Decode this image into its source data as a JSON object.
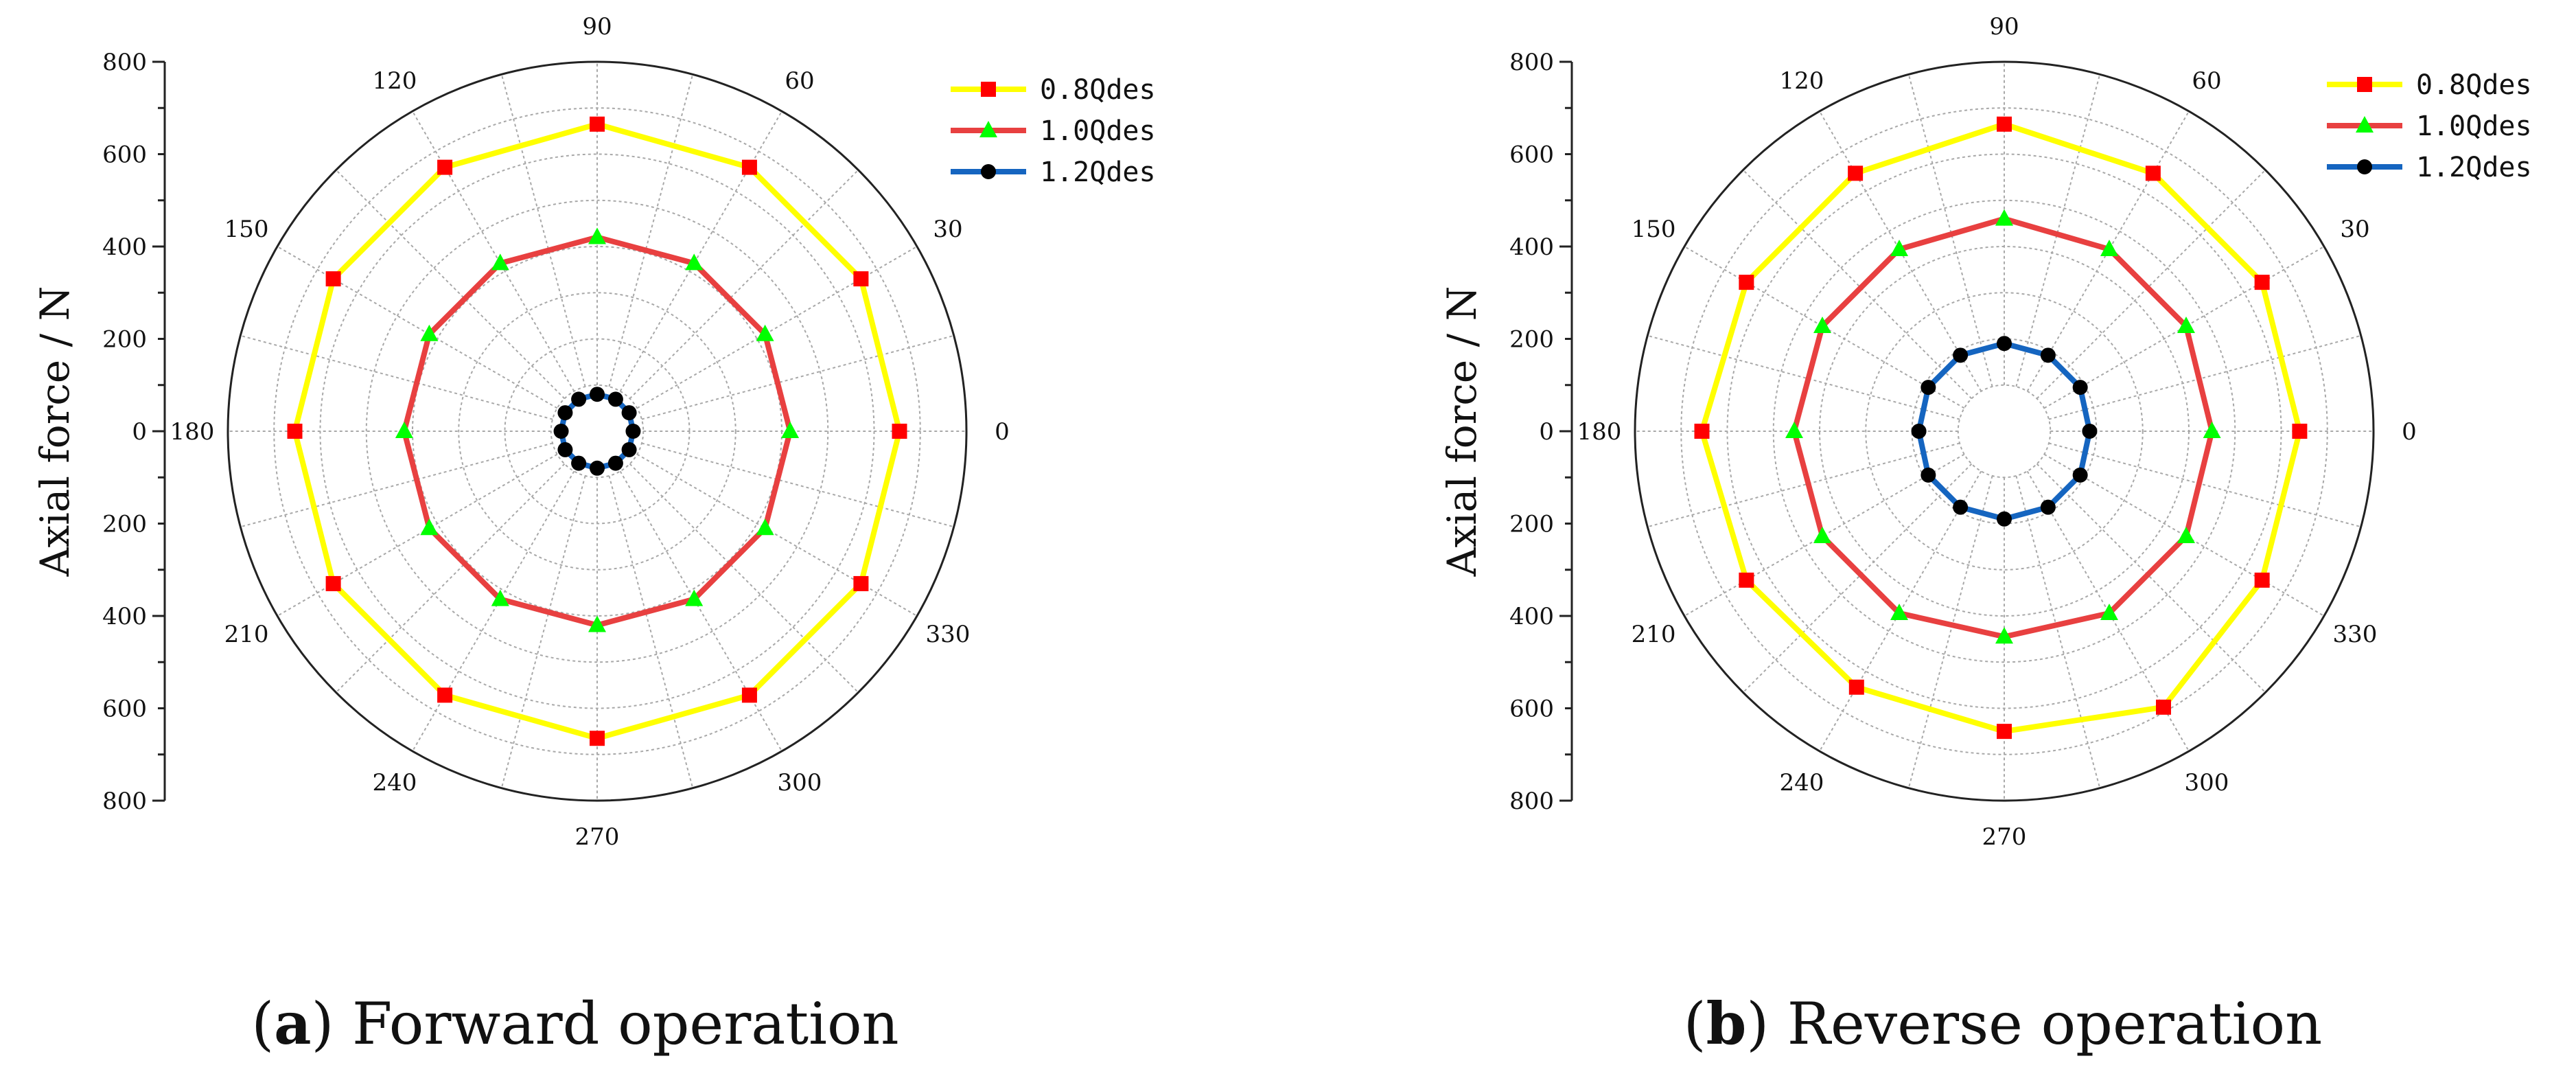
{
  "chart_data": [
    {
      "type": "polar-line",
      "panel_label": "a",
      "caption": "Forward operation",
      "ylabel": "Axial force / N",
      "r_range": [
        0,
        800
      ],
      "r_axis_ticks_upper": [
        "800",
        "600",
        "400",
        "200",
        "0"
      ],
      "r_axis_ticks_lower": [
        "200",
        "400",
        "600",
        "800"
      ],
      "angle_labels": [
        "90",
        "60",
        "30",
        "0",
        "330",
        "300",
        "270",
        "240",
        "210",
        "180",
        "150",
        "120"
      ],
      "angles_deg": [
        0,
        30,
        60,
        90,
        120,
        150,
        180,
        210,
        240,
        270,
        300,
        330
      ],
      "series": [
        {
          "name": "0.8Qdes",
          "color": "#ffff00",
          "marker": "square",
          "marker_color": "#ff0000",
          "values": [
            655,
            660,
            660,
            665,
            660,
            660,
            655,
            660,
            660,
            665,
            660,
            660
          ]
        },
        {
          "name": "1.0Qdes",
          "color": "#e84040",
          "marker": "triangle",
          "marker_color": "#00ff00",
          "values": [
            418,
            420,
            420,
            420,
            420,
            420,
            418,
            420,
            420,
            420,
            420,
            420
          ]
        },
        {
          "name": "1.2Qdes",
          "color": "#1565c0",
          "marker": "circle",
          "marker_color": "#000000",
          "values": [
            78,
            80,
            80,
            80,
            80,
            80,
            78,
            80,
            80,
            80,
            80,
            80
          ]
        }
      ]
    },
    {
      "type": "polar-line",
      "panel_label": "b",
      "caption": "Reverse operation",
      "ylabel": "Axial force / N",
      "r_range": [
        0,
        800
      ],
      "r_axis_ticks_upper": [
        "800",
        "600",
        "400",
        "200",
        "0"
      ],
      "r_axis_ticks_lower": [
        "200",
        "400",
        "600",
        "800"
      ],
      "angle_labels": [
        "90",
        "60",
        "30",
        "0",
        "330",
        "300",
        "270",
        "240",
        "210",
        "180",
        "150",
        "120"
      ],
      "angles_deg": [
        0,
        30,
        60,
        90,
        120,
        150,
        180,
        210,
        240,
        270,
        300,
        330
      ],
      "series": [
        {
          "name": "0.8Qdes",
          "color": "#ffff00",
          "marker": "square",
          "marker_color": "#ff0000",
          "values": [
            640,
            645,
            645,
            665,
            645,
            645,
            655,
            645,
            640,
            650,
            690,
            645
          ]
        },
        {
          "name": "1.0Qdes",
          "color": "#e84040",
          "marker": "triangle",
          "marker_color": "#00ff00",
          "values": [
            450,
            455,
            455,
            460,
            455,
            455,
            455,
            455,
            455,
            445,
            455,
            455
          ]
        },
        {
          "name": "1.2Qdes",
          "color": "#1565c0",
          "marker": "circle",
          "marker_color": "#000000",
          "values": [
            185,
            190,
            190,
            190,
            190,
            190,
            185,
            190,
            190,
            190,
            190,
            190
          ]
        }
      ]
    }
  ]
}
